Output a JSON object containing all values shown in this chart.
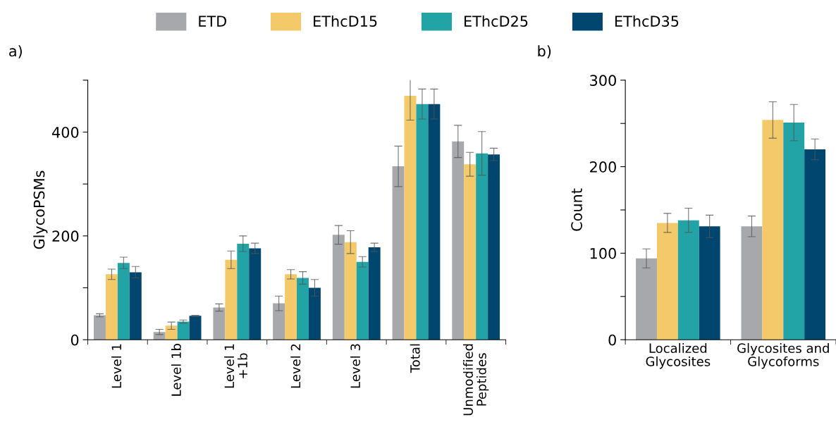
{
  "chart_data": [
    {
      "type": "bar",
      "ylabel": "GlycoPSMs",
      "annotations": [
        "a)"
      ],
      "legend": "top",
      "grid": false,
      "categories": [
        "Level 1",
        "Level 1b",
        "Level 1\n+1b",
        "Level 2",
        "Level 3",
        "Total",
        "Unmodified\nPeptides"
      ],
      "ylim": [
        0,
        500
      ],
      "yticks": [
        0,
        {
          "value": 100,
          "label": null
        },
        200,
        {
          "value": 300,
          "label": null
        },
        400,
        {
          "value": 500,
          "label": null
        }
      ],
      "series": [
        {
          "name": "ETD",
          "color": "#a7a8ab",
          "values": [
            47,
            15,
            62,
            70,
            202,
            334,
            382
          ],
          "errors": [
            3,
            5,
            7,
            14,
            18,
            39,
            31
          ]
        },
        {
          "name": "EThcD15",
          "color": "#f3c969",
          "values": [
            126,
            27,
            154,
            126,
            188,
            470,
            338
          ],
          "errors": [
            10,
            7,
            17,
            9,
            22,
            47,
            23
          ]
        },
        {
          "name": "EThcD25",
          "color": "#22a3a5",
          "values": [
            148,
            35,
            185,
            119,
            150,
            454,
            359
          ],
          "errors": [
            11,
            3,
            15,
            12,
            10,
            29,
            42
          ]
        },
        {
          "name": "EThcD35",
          "color": "#00466e",
          "values": [
            130,
            46,
            176,
            100,
            178,
            454,
            357
          ],
          "errors": [
            11,
            1,
            10,
            16,
            8,
            29,
            12
          ]
        }
      ]
    },
    {
      "type": "bar",
      "ylabel": "Count",
      "annotations": [
        "b)"
      ],
      "grid": false,
      "categories": [
        "Localized\nGlycosites",
        "Glycosites and\nGlycoforms"
      ],
      "ylim": [
        0,
        300
      ],
      "yticks": [
        0,
        {
          "value": 50,
          "label": null
        },
        100,
        {
          "value": 150,
          "label": null
        },
        200,
        {
          "value": 250,
          "label": null
        },
        300
      ],
      "series": [
        {
          "color": "#a7a8ab",
          "values": [
            94,
            131
          ],
          "errors": [
            11,
            12
          ]
        },
        {
          "color": "#f3c969",
          "values": [
            135,
            254
          ],
          "errors": [
            11,
            21
          ]
        },
        {
          "color": "#22a3a5",
          "values": [
            138,
            251
          ],
          "errors": [
            14,
            21
          ]
        },
        {
          "color": "#00466e",
          "values": [
            131,
            220
          ],
          "errors": [
            13,
            12
          ]
        }
      ]
    }
  ]
}
